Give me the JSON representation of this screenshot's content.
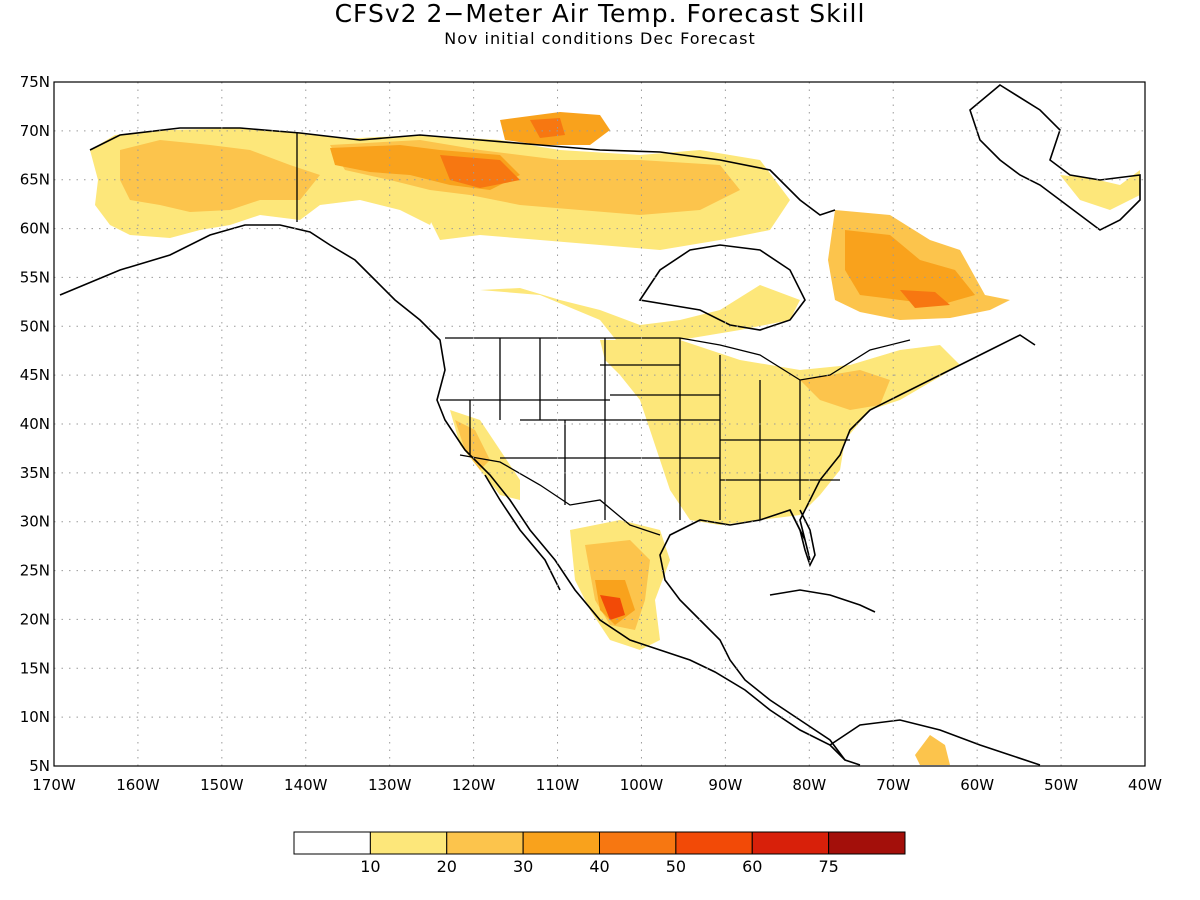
{
  "title": "CFSv2 2−Meter Air Temp. Forecast Skill",
  "subtitle": "Nov initial conditions   Dec Forecast",
  "map": {
    "lon_range": [
      -170,
      -40
    ],
    "lat_range": [
      5,
      75
    ],
    "lat_ticks": [
      "75N",
      "70N",
      "65N",
      "60N",
      "55N",
      "50N",
      "45N",
      "40N",
      "35N",
      "30N",
      "25N",
      "20N",
      "15N",
      "10N",
      "5N"
    ],
    "lon_ticks": [
      "170W",
      "160W",
      "150W",
      "140W",
      "130W",
      "120W",
      "110W",
      "100W",
      "90W",
      "80W",
      "70W",
      "60W",
      "50W",
      "40W"
    ],
    "gridlines": "dotted"
  },
  "colorbar": {
    "labels": [
      "10",
      "20",
      "30",
      "40",
      "50",
      "60",
      "75"
    ],
    "colors": [
      "#ffffff",
      "#fde77a",
      "#fcc44c",
      "#f9a21c",
      "#f77711",
      "#f24a07",
      "#d8200a",
      "#a30f0a"
    ]
  },
  "colors": {
    "land_line": "#000000",
    "state_line": "#000000",
    "grid": "#9a9a9a"
  }
}
